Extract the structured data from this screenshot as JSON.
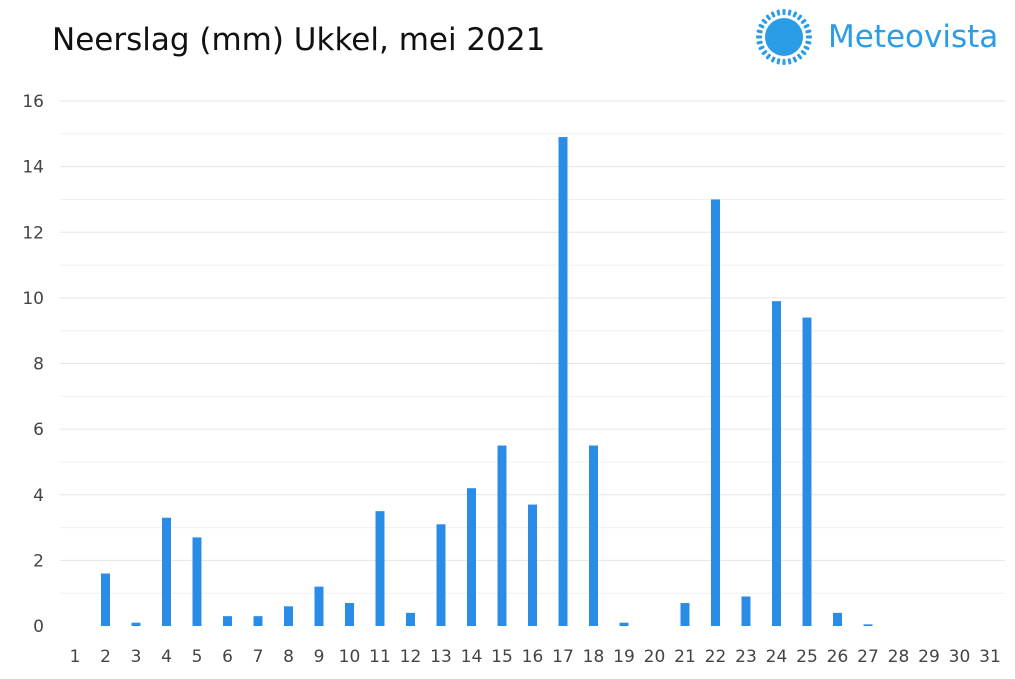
{
  "title": "Neerslag (mm) Ukkel, mei 2021",
  "brand": {
    "name": "Meteovista",
    "logo_icon": "sun-logo-icon",
    "color": "#2b9de6"
  },
  "chart_data": {
    "type": "bar",
    "title": "Neerslag (mm) Ukkel, mei 2021",
    "xlabel": "",
    "ylabel": "",
    "ylim": [
      0,
      16
    ],
    "yticks": [
      0,
      2,
      4,
      6,
      8,
      10,
      12,
      14,
      16
    ],
    "grid": true,
    "bar_color": "#2b8ce8",
    "categories": [
      "1",
      "2",
      "3",
      "4",
      "5",
      "6",
      "7",
      "8",
      "9",
      "10",
      "11",
      "12",
      "13",
      "14",
      "15",
      "16",
      "17",
      "18",
      "19",
      "20",
      "21",
      "22",
      "23",
      "24",
      "25",
      "26",
      "27",
      "28",
      "29",
      "30",
      "31"
    ],
    "values": [
      0,
      1.6,
      0.1,
      3.3,
      2.7,
      0.3,
      0.3,
      0.6,
      1.2,
      0.7,
      3.5,
      0.4,
      3.1,
      4.2,
      5.5,
      3.7,
      14.9,
      5.5,
      0.1,
      0,
      0.7,
      13.0,
      0.9,
      9.9,
      9.4,
      0.4,
      0.05,
      0,
      0,
      0,
      0
    ]
  }
}
